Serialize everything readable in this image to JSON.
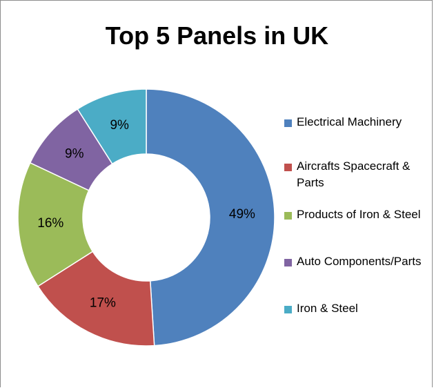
{
  "chart_data": {
    "type": "pie",
    "style": "donut",
    "title": "Top 5 Panels in UK",
    "categories": [
      "Electrical Machinery",
      "Aircrafts Spacecraft & Parts",
      "Products of Iron & Steel",
      "Auto Components/Parts",
      "Iron & Steel"
    ],
    "values": [
      49,
      17,
      16,
      9,
      9
    ],
    "data_labels": [
      "49%",
      "17%",
      "16%",
      "9%",
      "9%"
    ],
    "colors": [
      "#4f81bd",
      "#c0504d",
      "#9bbb59",
      "#8064a2",
      "#4bacc6"
    ],
    "legend_position": "right"
  }
}
